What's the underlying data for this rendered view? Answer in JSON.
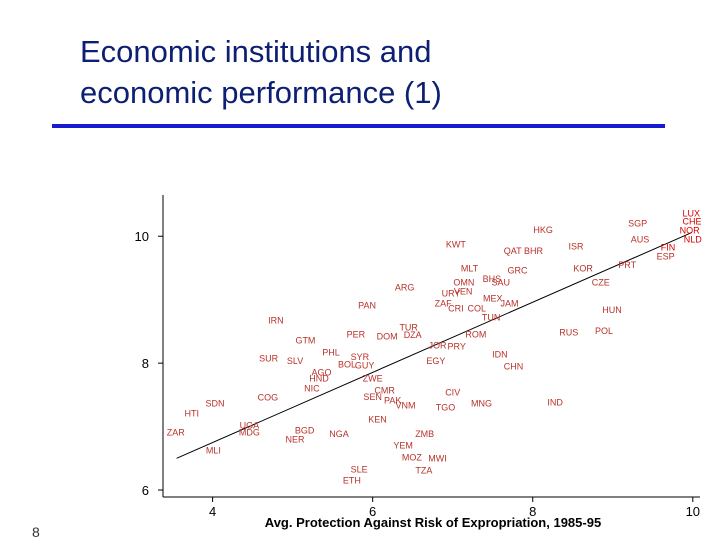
{
  "page_number": "8",
  "chart_data": {
    "type": "scatter",
    "title": [
      "Economic institutions and",
      "economic performance (1)"
    ],
    "xlabel": "Avg. Protection Against Risk of Expropriation, 1985-95",
    "xlim": [
      3.38,
      10.09
    ],
    "ylim": [
      5.89,
      10.65
    ],
    "xticks": [
      4,
      6,
      8,
      10
    ],
    "yticks": [
      6,
      8,
      10
    ],
    "fit": {
      "x": [
        3.55,
        9.99
      ],
      "y": [
        6.5,
        10.06
      ]
    },
    "groups": [
      {
        "color": "#d80000",
        "labels": [
          "LUX",
          "CHE",
          "NOR",
          "NLD",
          "FIN"
        ],
        "x": [
          9.98,
          9.99,
          9.96,
          10.0,
          9.69
        ],
        "y": [
          10.35,
          10.22,
          10.08,
          9.94,
          9.81
        ]
      },
      {
        "color": "#b8312a",
        "labels": [
          "SGP",
          "AUS",
          "ESP",
          "HKG",
          "ISR",
          "KWT",
          "QAT",
          "BHR",
          "KOR",
          "PRT",
          "CZE",
          "MLT",
          "GRC",
          "OMN",
          "BHS",
          "SAU",
          "ARG",
          "URY",
          "VEN",
          "MEX",
          "ZAF",
          "CRI",
          "COL",
          "TUN",
          "JAM",
          "HUN",
          "PAN",
          "IRN",
          "TUR",
          "PER",
          "DOM",
          "DZA",
          "ROM",
          "RUS",
          "POL",
          "GTM",
          "PHL",
          "SYR",
          "JOR",
          "PRY",
          "IDN",
          "EGY",
          "CHN",
          "SUR",
          "SLV",
          "BOL",
          "GUY",
          "AGO",
          "HND",
          "ZWE",
          "NIC",
          "CMR",
          "CIV",
          "SEN",
          "PAK",
          "VNM",
          "TGO",
          "MNG",
          "IND",
          "COG",
          "SDN",
          "HTI",
          "ZAR",
          "UGA",
          "MDG",
          "BGD",
          "NER",
          "NGA",
          "KEN",
          "ZMB",
          "MLI",
          "YEM",
          "MOZ",
          "MWI",
          "SLE",
          "TZA",
          "ETH"
        ],
        "x": [
          9.31,
          9.34,
          9.66,
          8.13,
          8.54,
          7.04,
          7.75,
          8.01,
          8.63,
          9.18,
          8.85,
          7.21,
          7.81,
          7.14,
          7.49,
          7.6,
          6.4,
          6.98,
          7.13,
          7.5,
          6.88,
          7.04,
          7.3,
          7.48,
          7.71,
          8.99,
          5.93,
          4.79,
          6.45,
          5.79,
          6.18,
          6.5,
          7.29,
          8.45,
          8.89,
          5.16,
          5.48,
          5.84,
          6.81,
          7.05,
          7.59,
          6.79,
          7.76,
          4.7,
          5.03,
          5.68,
          5.9,
          5.36,
          5.33,
          6.0,
          5.24,
          6.15,
          7.0,
          6.0,
          6.25,
          6.41,
          6.91,
          7.36,
          8.28,
          4.69,
          4.03,
          3.74,
          3.54,
          4.46,
          4.46,
          5.15,
          5.03,
          5.58,
          6.06,
          6.65,
          4.01,
          6.38,
          6.49,
          6.81,
          5.83,
          6.64,
          5.74
        ],
        "y": [
          10.19,
          9.94,
          9.67,
          10.09,
          9.83,
          9.86,
          9.76,
          9.76,
          9.48,
          9.54,
          9.26,
          9.48,
          9.45,
          9.26,
          9.32,
          9.26,
          9.18,
          9.09,
          9.12,
          9.01,
          8.93,
          8.85,
          8.85,
          8.71,
          8.93,
          8.83,
          8.9,
          8.66,
          8.55,
          8.44,
          8.41,
          8.43,
          8.44,
          8.47,
          8.5,
          8.35,
          8.16,
          8.09,
          8.27,
          8.25,
          8.13,
          8.02,
          7.94,
          8.06,
          8.02,
          7.97,
          7.95,
          7.84,
          7.75,
          7.75,
          7.59,
          7.56,
          7.53,
          7.46,
          7.4,
          7.32,
          7.29,
          7.35,
          7.37,
          7.45,
          7.35,
          7.2,
          6.9,
          7.01,
          6.9,
          6.93,
          6.79,
          6.87,
          7.1,
          6.87,
          6.61,
          6.69,
          6.5,
          6.49,
          6.31,
          6.3,
          6.14
        ]
      }
    ]
  }
}
